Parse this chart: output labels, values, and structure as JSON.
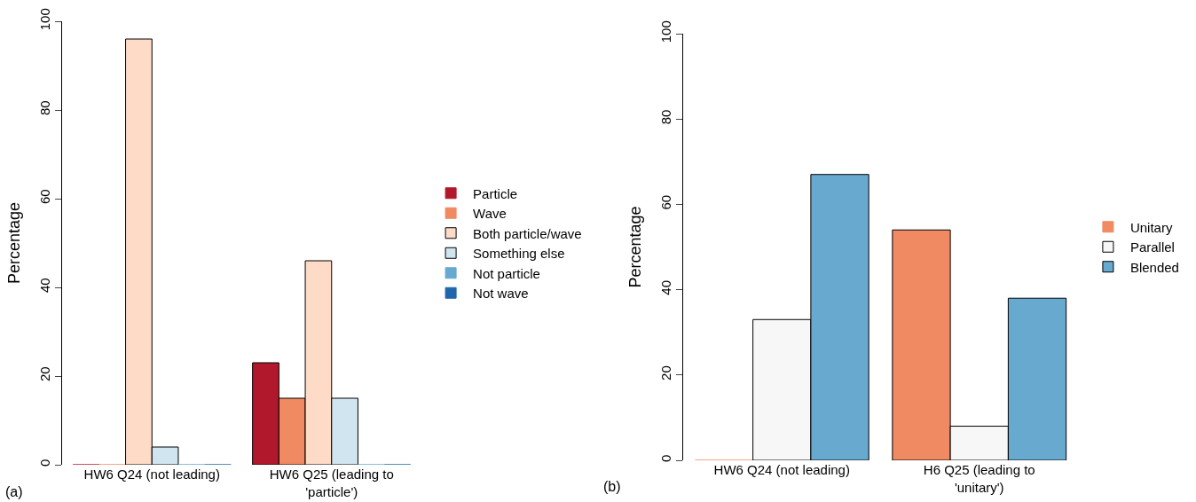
{
  "chart_data": [
    {
      "type": "bar",
      "ylabel": "Percentage",
      "categories": [
        "HW6 Q24 (not leading)",
        "HW6 Q25 (leading to 'particle')"
      ],
      "ylim": [
        0,
        100
      ],
      "yticks": [
        0,
        20,
        40,
        60,
        80,
        100
      ],
      "grid": false,
      "legend": "right",
      "annotations": [
        "(a)"
      ],
      "series": [
        {
          "name": "Particle",
          "color": "#b2182b",
          "values": [
            0,
            23
          ]
        },
        {
          "name": "Wave",
          "color": "#ef8a62",
          "values": [
            0,
            15
          ]
        },
        {
          "name": "Both particle/wave",
          "color": "#fddbc7",
          "values": [
            96,
            46
          ]
        },
        {
          "name": "Something else",
          "color": "#d1e5f0",
          "values": [
            4,
            15
          ]
        },
        {
          "name": "Not particle",
          "color": "#67a9cf",
          "values": [
            0,
            0
          ]
        },
        {
          "name": "Not wave",
          "color": "#2166ac",
          "values": [
            0,
            0
          ]
        }
      ]
    },
    {
      "type": "bar",
      "ylabel": "Percentage",
      "categories": [
        "HW6 Q24 (not leading)",
        "H6 Q25 (leading to 'unitary')"
      ],
      "ylim": [
        0,
        100
      ],
      "yticks": [
        0,
        20,
        40,
        60,
        80,
        100
      ],
      "grid": false,
      "legend": "right",
      "annotations": [
        "(b)"
      ],
      "series": [
        {
          "name": "Unitary",
          "color": "#ef8a62",
          "values": [
            0,
            54
          ]
        },
        {
          "name": "Parallel",
          "color": "#f7f7f7",
          "values": [
            33,
            8
          ]
        },
        {
          "name": "Blended",
          "color": "#67a9cf",
          "values": [
            67,
            38
          ]
        }
      ]
    }
  ]
}
